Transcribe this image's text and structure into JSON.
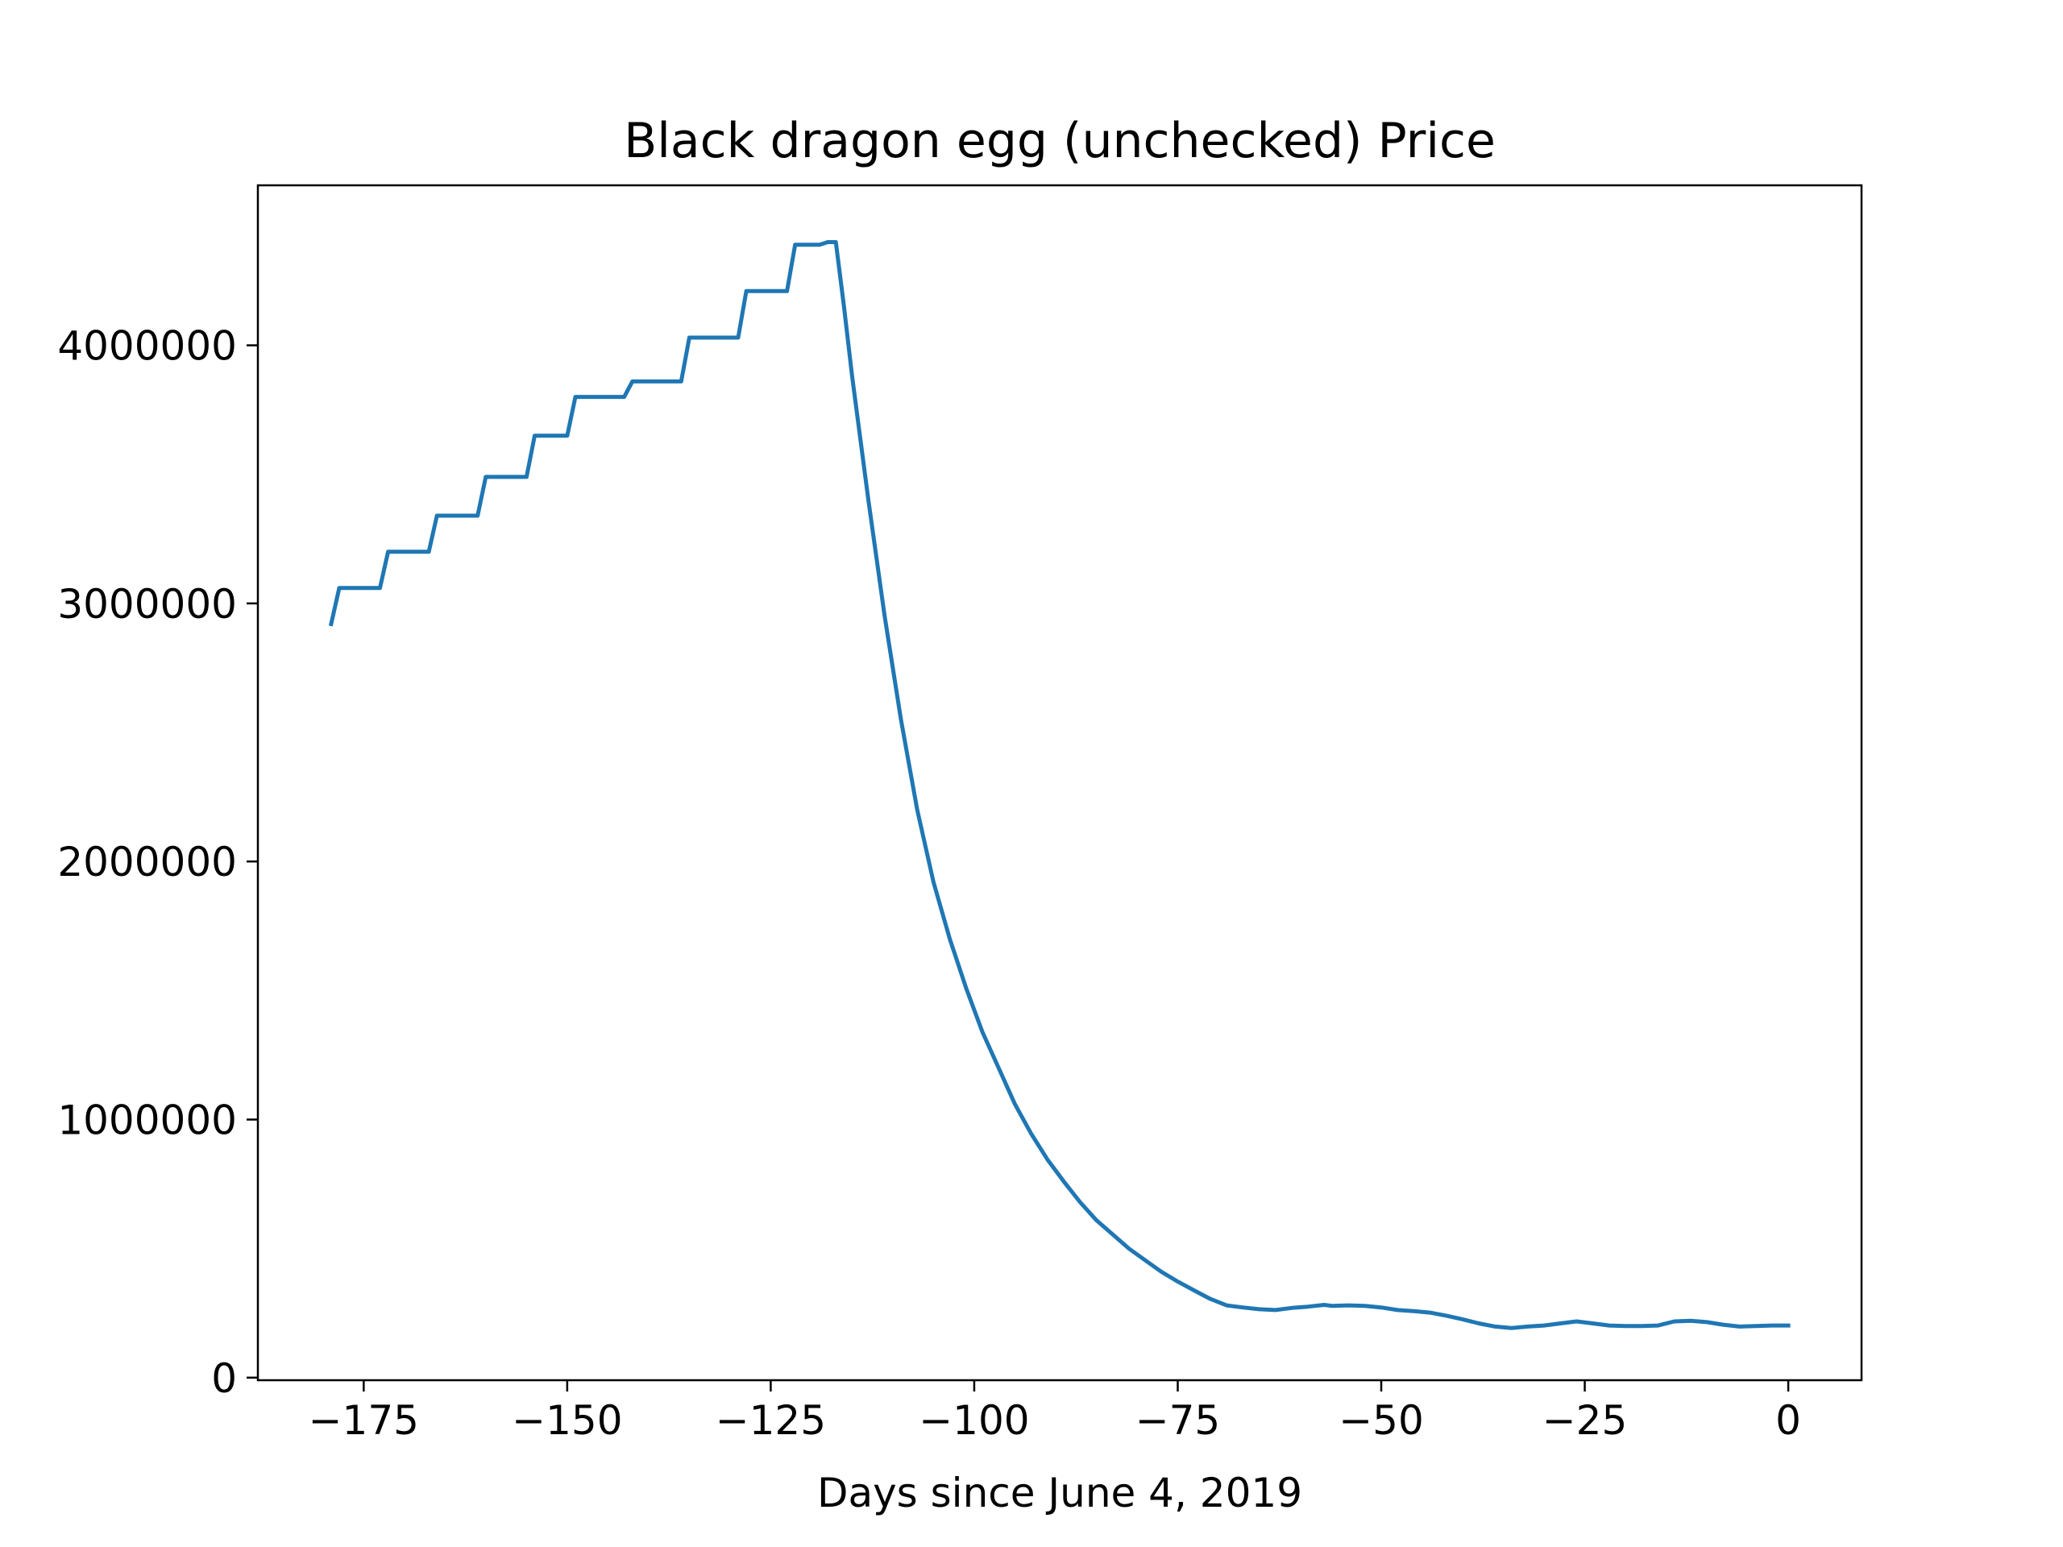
{
  "chart_data": {
    "type": "line",
    "title": "Black dragon egg (unchecked) Price",
    "xlabel": "Days since June 4, 2019",
    "ylabel": "",
    "xlim": [
      -188.0,
      9.0
    ],
    "ylim": [
      -10000,
      4620000
    ],
    "x_ticks": [
      -175,
      -150,
      -125,
      -100,
      -75,
      -50,
      -25,
      0
    ],
    "x_tick_labels": [
      "−175",
      "−150",
      "−125",
      "−100",
      "−75",
      "−50",
      "−25",
      "0"
    ],
    "y_ticks": [
      0,
      1000000,
      2000000,
      3000000,
      4000000
    ],
    "y_tick_labels": [
      "0",
      "1000000",
      "2000000",
      "3000000",
      "4000000"
    ],
    "grid": false,
    "legend": "none",
    "series": [
      {
        "color": "#1f77b4",
        "x": [
          -179,
          -178,
          -173,
          -172,
          -167,
          -166,
          -161,
          -160,
          -155,
          -154,
          -150,
          -149,
          -143,
          -142,
          -136,
          -135,
          -129,
          -128,
          -123,
          -122,
          -119,
          -118,
          -117,
          -116,
          -115,
          -113,
          -111,
          -109,
          -107,
          -105,
          -103,
          -101,
          -99,
          -97,
          -95,
          -93,
          -91,
          -89,
          -87,
          -85,
          -83,
          -81,
          -79,
          -77,
          -75,
          -73,
          -71,
          -69,
          -67,
          -65,
          -63,
          -61,
          -59,
          -57,
          -56,
          -54,
          -52,
          -50,
          -48,
          -46,
          -44,
          -42,
          -40,
          -38,
          -36,
          -34,
          -32,
          -30,
          -28,
          -26,
          -24,
          -22,
          -20,
          -18,
          -16,
          -14,
          -12,
          -10,
          -8,
          -6,
          -4,
          -2,
          0
        ],
        "y": [
          2920000,
          3060000,
          3060000,
          3200000,
          3200000,
          3340000,
          3340000,
          3490000,
          3490000,
          3650000,
          3650000,
          3800000,
          3800000,
          3860000,
          3860000,
          4030000,
          4030000,
          4210000,
          4210000,
          4390000,
          4390000,
          4400000,
          4400000,
          4150000,
          3880000,
          3400000,
          2950000,
          2550000,
          2200000,
          1920000,
          1700000,
          1510000,
          1340000,
          1200000,
          1060000,
          945000,
          845000,
          760000,
          680000,
          610000,
          555000,
          500000,
          455000,
          410000,
          372000,
          338000,
          305000,
          280000,
          272000,
          265000,
          262000,
          270000,
          275000,
          282000,
          278000,
          280000,
          278000,
          272000,
          262000,
          258000,
          252000,
          240000,
          226000,
          210000,
          198000,
          192000,
          198000,
          202000,
          210000,
          218000,
          210000,
          202000,
          200000,
          200000,
          202000,
          218000,
          220000,
          215000,
          205000,
          198000,
          200000,
          202000,
          202000
        ]
      }
    ]
  }
}
